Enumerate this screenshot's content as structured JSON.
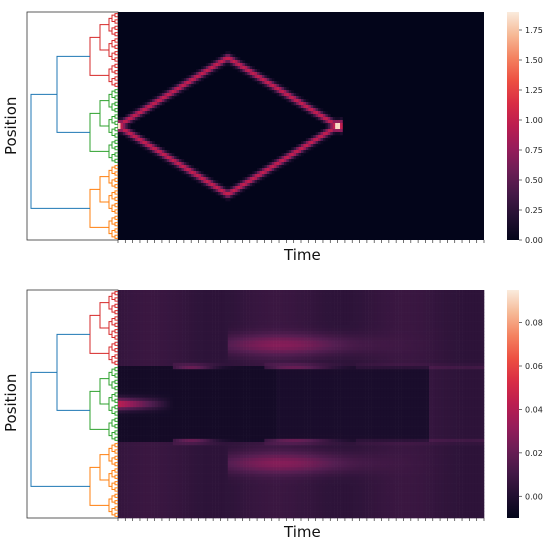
{
  "chart_data": [
    {
      "type": "heatmap",
      "title": "",
      "xlabel": "Time",
      "ylabel": "Position",
      "colormap": "rocket",
      "dendrogram_side": "left",
      "dendrogram_clusters": [
        {
          "color": "#d62728",
          "leaves": 24
        },
        {
          "color": "#2ca02c",
          "leaves": 24
        },
        {
          "color": "#ff7f0e",
          "leaves": 24
        }
      ],
      "dendrogram_link_color": "#1f77b4",
      "colorbar": {
        "range": [
          0.0,
          1.9
        ],
        "tick_labels": [
          "0.00",
          "0.25",
          "0.50",
          "0.75",
          "1.00",
          "1.25",
          "1.50",
          "1.75"
        ]
      },
      "pattern": "diamond",
      "description_values": {
        "source_row_fraction": 0.5,
        "peak_value_at_source": 1.9,
        "line_value": 1.0,
        "apex_time_fraction": 0.3,
        "end_time_fraction": 0.6,
        "apex_row_offset_fraction": 0.3
      }
    },
    {
      "type": "heatmap",
      "title": "",
      "xlabel": "Time",
      "ylabel": "Position",
      "colormap": "rocket",
      "dendrogram_side": "left",
      "dendrogram_clusters": [
        {
          "color": "#d62728",
          "leaves": 24
        },
        {
          "color": "#2ca02c",
          "leaves": 24
        },
        {
          "color": "#ff7f0e",
          "leaves": 24
        }
      ],
      "dendrogram_link_color": "#1f77b4",
      "colorbar": {
        "range": [
          -0.01,
          0.095
        ],
        "tick_labels": [
          "0.00",
          "0.02",
          "0.04",
          "0.06",
          "0.08"
        ]
      },
      "pattern": "error-field"
    }
  ]
}
